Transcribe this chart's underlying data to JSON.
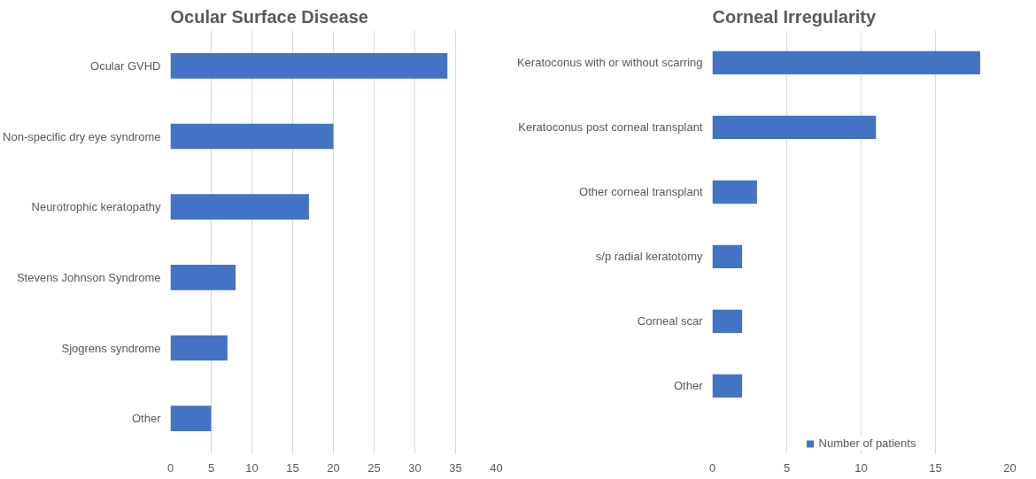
{
  "chart_data": [
    {
      "type": "bar",
      "orientation": "horizontal",
      "title": "Ocular Surface Disease",
      "categories": [
        "Ocular GVHD",
        "Non-specific dry eye syndrome",
        "Neurotrophic keratopathy",
        "Stevens Johnson Syndrome",
        "Sjogrens syndrome",
        "Other"
      ],
      "series": [
        {
          "color": "#4472c4",
          "values": [
            34,
            20,
            17,
            8,
            7,
            5
          ]
        }
      ],
      "xlim": [
        0,
        40
      ],
      "xticks": [
        0,
        5,
        10,
        15,
        20,
        25,
        30,
        35,
        40
      ],
      "grid": "x"
    },
    {
      "type": "bar",
      "orientation": "horizontal",
      "title": "Corneal Irregularity",
      "categories": [
        "Keratoconus with or without scarring",
        "Keratoconus post corneal transplant",
        "Other corneal transplant",
        "s/p radial keratotomy",
        "Corneal scar",
        "Other"
      ],
      "series": [
        {
          "name": "Number of patients",
          "color": "#4472c4",
          "values": [
            18,
            11,
            3,
            2,
            2,
            2
          ]
        }
      ],
      "xlim": [
        0,
        20
      ],
      "xticks": [
        0,
        5,
        10,
        15,
        20
      ],
      "grid": "x",
      "legend": "bottom"
    }
  ]
}
